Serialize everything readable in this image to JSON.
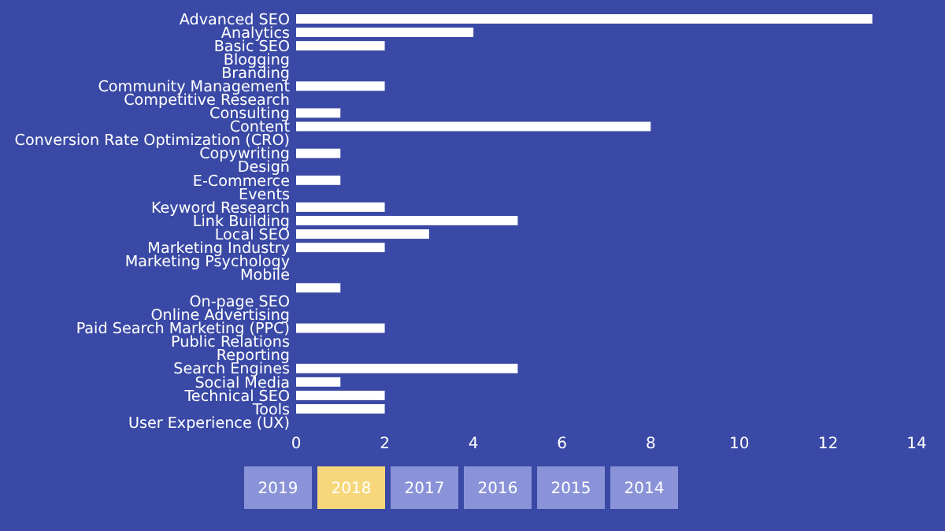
{
  "chart_data": {
    "type": "bar",
    "orientation": "horizontal",
    "categories": [
      "Advanced SEO",
      "Analytics",
      "Basic SEO",
      "Blogging",
      "Branding",
      "Community Management",
      "Competitive Research",
      "Consulting",
      "Content",
      "Conversion Rate Optimization (CRO)",
      "Copywriting",
      "Design",
      "E-Commerce",
      "Events",
      "Keyword Research",
      "Link Building",
      "Local SEO",
      "Marketing Industry",
      "Marketing Psychology",
      "Mobile",
      null,
      "On-page SEO",
      "Online Advertising",
      "Paid Search Marketing (PPC)",
      "Public Relations",
      "Reporting",
      "Search Engines",
      "Social Media",
      "Technical SEO",
      "Tools",
      "User Experience (UX)"
    ],
    "values": [
      13,
      4,
      2,
      0,
      0,
      2,
      0,
      1,
      8,
      0,
      1,
      0,
      1,
      0,
      2,
      5,
      3,
      2,
      0,
      0,
      1,
      0,
      0,
      2,
      0,
      0,
      5,
      1,
      2,
      2,
      0
    ],
    "color": "#ffffff",
    "xlim": [
      0,
      14
    ],
    "xticks": [
      0,
      2,
      4,
      6,
      8,
      10,
      12,
      14
    ],
    "grid": false,
    "annotations": [
      "2019",
      "2018",
      "2017",
      "2016",
      "2015",
      "2014"
    ]
  }
}
